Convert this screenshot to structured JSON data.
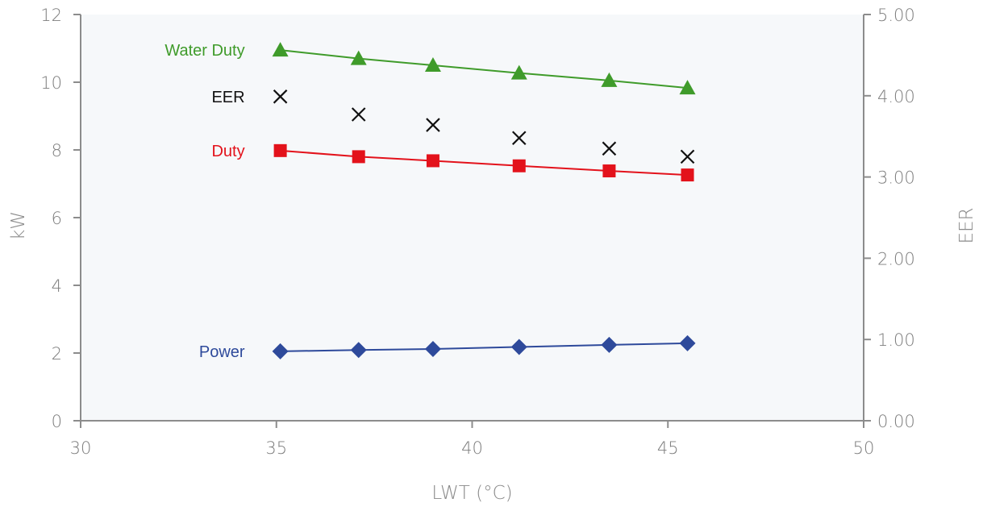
{
  "chart_data": {
    "type": "line",
    "xlabel": "LWT (°C)",
    "ylabel_left": "kW",
    "ylabel_right": "EER",
    "xlim": [
      30,
      50
    ],
    "ylim_left": [
      0,
      12
    ],
    "ylim_right": [
      0,
      5
    ],
    "x_ticks": [
      "30",
      "35",
      "40",
      "45",
      "50"
    ],
    "y_left_ticks": [
      "0",
      "2",
      "4",
      "6",
      "8",
      "10",
      "12"
    ],
    "y_right_ticks": [
      "0.00",
      "1.00",
      "2.00",
      "3.00",
      "4.00",
      "5.00"
    ],
    "grid": false,
    "plot_background": "#f6f8fa",
    "series": [
      {
        "name": "Water Duty",
        "axis": "left",
        "marker": "triangle",
        "line": true,
        "color": "#3f9b2a",
        "x": [
          35.1,
          37.1,
          39.0,
          41.2,
          43.5,
          45.5
        ],
        "y": [
          10.95,
          10.7,
          10.5,
          10.27,
          10.05,
          9.83
        ]
      },
      {
        "name": "EER",
        "axis": "right",
        "marker": "x",
        "line": false,
        "color": "#111111",
        "x": [
          35.1,
          37.1,
          39.0,
          41.2,
          43.5,
          45.5
        ],
        "y": [
          3.99,
          3.77,
          3.64,
          3.48,
          3.35,
          3.25
        ]
      },
      {
        "name": "Duty",
        "axis": "left",
        "marker": "square",
        "line": true,
        "color": "#e3121b",
        "x": [
          35.1,
          37.1,
          39.0,
          41.2,
          43.5,
          45.5
        ],
        "y": [
          7.98,
          7.8,
          7.68,
          7.53,
          7.38,
          7.26
        ]
      },
      {
        "name": "Power",
        "axis": "left",
        "marker": "diamond",
        "line": true,
        "color": "#2e4a9b",
        "x": [
          35.1,
          37.1,
          39.0,
          41.2,
          43.5,
          45.5
        ],
        "y": [
          2.05,
          2.09,
          2.12,
          2.18,
          2.24,
          2.29
        ]
      }
    ]
  }
}
